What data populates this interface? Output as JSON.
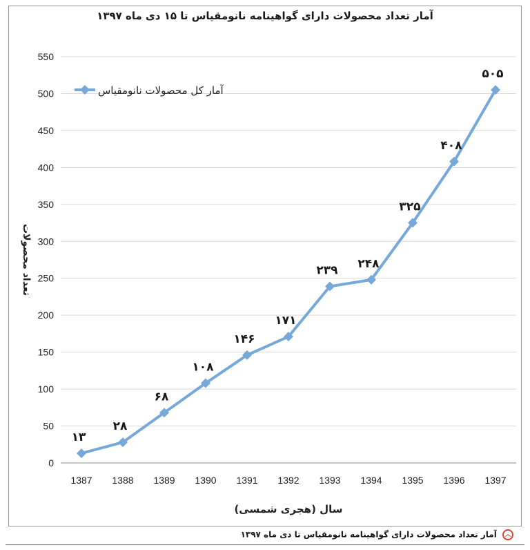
{
  "chart_data": {
    "type": "line",
    "title": "آمار تعداد محصولات دارای گواهینامه نانومقیاس تا ۱۵ دی ماه ۱۳۹۷",
    "xlabel": "سال (هجری شمسی)",
    "ylabel": "تعداد محصولات",
    "ylim": [
      0,
      550
    ],
    "yticks": [
      0,
      50,
      100,
      150,
      200,
      250,
      300,
      350,
      400,
      450,
      500,
      550
    ],
    "categories": [
      "1387",
      "1388",
      "1389",
      "1390",
      "1391",
      "1392",
      "1393",
      "1394",
      "1395",
      "1396",
      "1397"
    ],
    "series": [
      {
        "name": "آمار کل محصولات نانومقیاس",
        "values": [
          13,
          28,
          68,
          108,
          146,
          171,
          239,
          248,
          325,
          408,
          505
        ],
        "data_labels": [
          "۱۳",
          "۲۸",
          "۶۸",
          "۱۰۸",
          "۱۴۶",
          "۱۷۱",
          "۲۳۹",
          "۲۴۸",
          "۳۲۵",
          "۴۰۸",
          "۵۰۵"
        ],
        "color": "#76a9d9"
      }
    ],
    "grid": true,
    "legend_position": "top-left"
  },
  "caption": {
    "icon": "up-chevron-icon",
    "text": "آمار تعداد محصولات دارای گواهینامه نانومقیاس تا دی ماه ۱۳۹۷"
  }
}
